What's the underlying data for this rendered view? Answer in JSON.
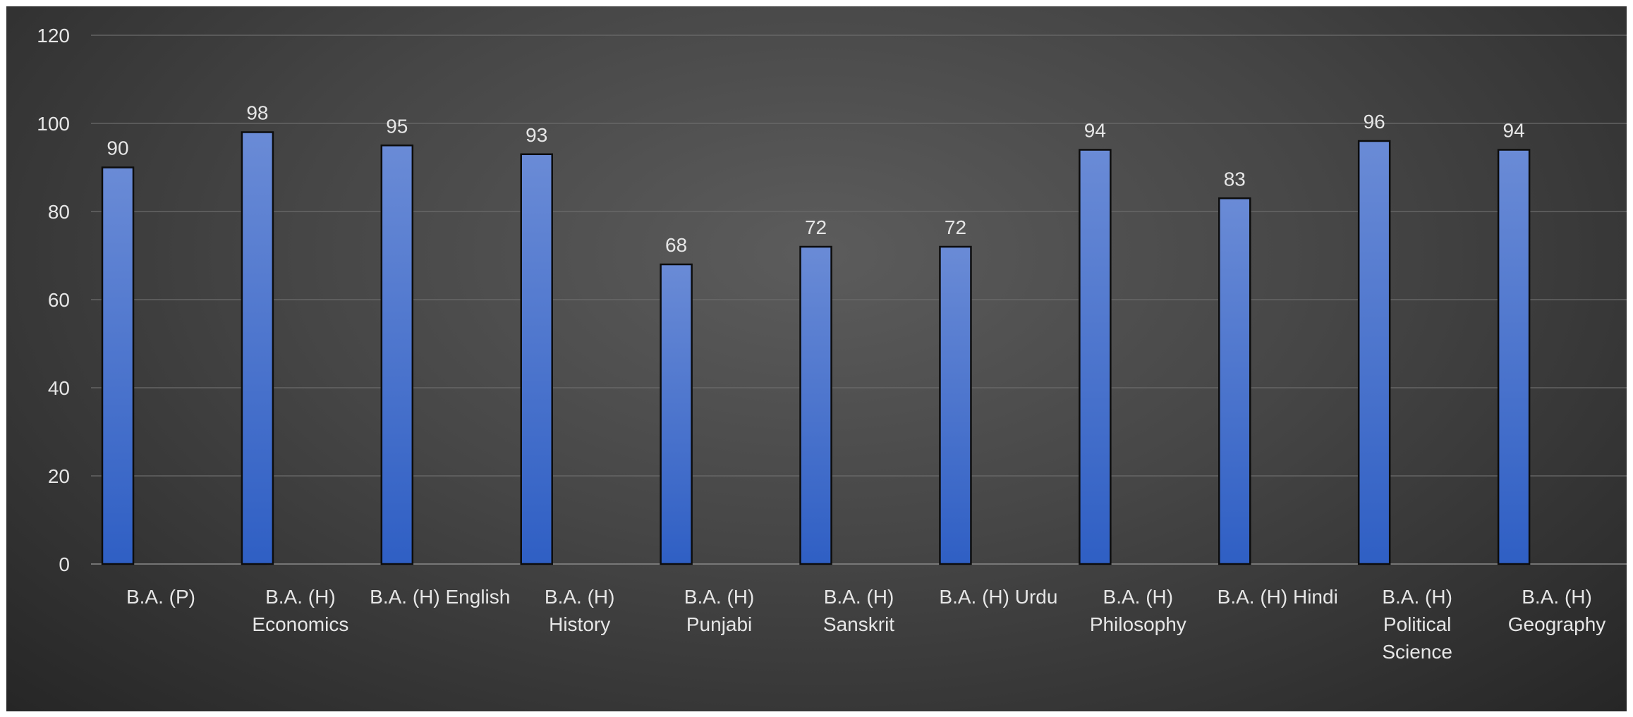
{
  "chart_data": {
    "type": "bar",
    "categories": [
      [
        "B.A. (P)"
      ],
      [
        "B.A. (H)",
        "Economics"
      ],
      [
        "B.A. (H) English"
      ],
      [
        "B.A. (H)",
        "History"
      ],
      [
        "B.A. (H)",
        "Punjabi"
      ],
      [
        "B.A. (H)",
        "Sanskrit"
      ],
      [
        "B.A. (H) Urdu"
      ],
      [
        "B.A. (H)",
        "Philosophy"
      ],
      [
        "B.A. (H) Hindi"
      ],
      [
        "B.A. (H)",
        "Political",
        "Science"
      ],
      [
        "B.A. (H)",
        "Geography"
      ]
    ],
    "values": [
      90,
      98,
      95,
      93,
      68,
      72,
      72,
      94,
      83,
      96,
      94
    ],
    "data_labels": [
      "90",
      "98",
      "95",
      "93",
      "68",
      "72",
      "72",
      "94",
      "83",
      "96",
      "94"
    ],
    "yticks": [
      "0",
      "20",
      "40",
      "60",
      "80",
      "100",
      "120"
    ],
    "ylim": [
      0,
      120
    ],
    "grid": true,
    "legend": "none",
    "colors": {
      "bar_top": "#6a8bd6",
      "bar_bottom": "#2f5fc4",
      "bar_outline": "#0d0d0d",
      "background": "#404040",
      "text": "#e6e6e6"
    }
  }
}
